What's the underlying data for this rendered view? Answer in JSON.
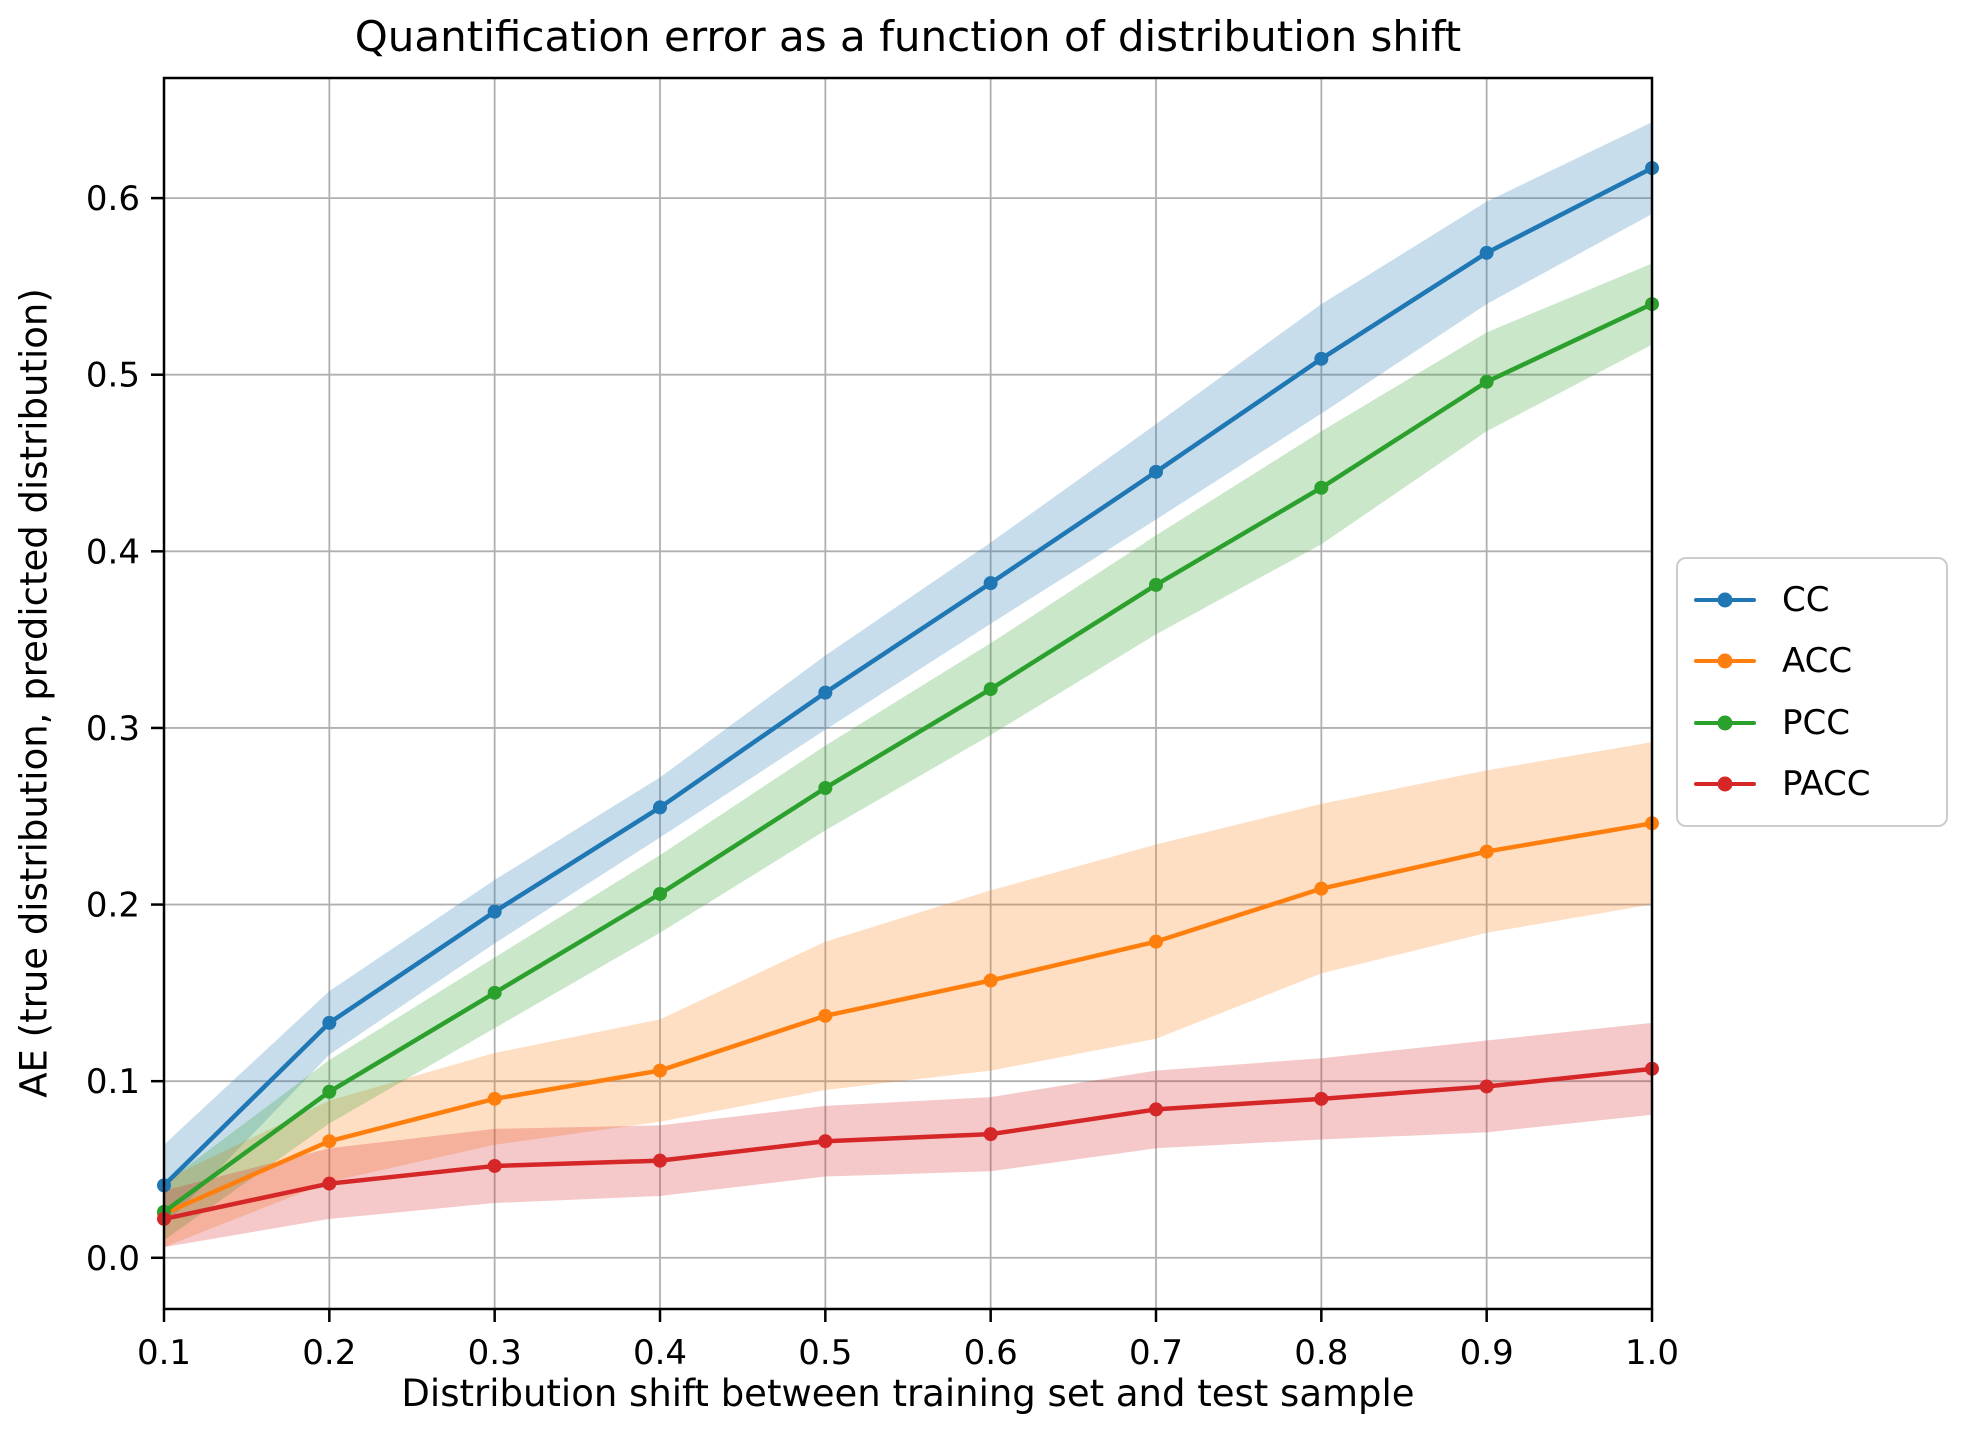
{
  "chart_data": {
    "type": "line",
    "title": "Quantification error as a function of distribution shift",
    "xlabel": "Distribution shift between training set and test sample",
    "ylabel": "AE (true distribution, predicted distribution)",
    "x": [
      0.1,
      0.2,
      0.3,
      0.4,
      0.5,
      0.6,
      0.7,
      0.8,
      0.9,
      1.0
    ],
    "x_tick_labels": [
      "0.1",
      "0.2",
      "0.3",
      "0.4",
      "0.5",
      "0.6",
      "0.7",
      "0.8",
      "0.9",
      "1.0"
    ],
    "y_ticks": [
      0.0,
      0.1,
      0.2,
      0.3,
      0.4,
      0.5,
      0.6
    ],
    "y_tick_labels": [
      "0.0",
      "0.1",
      "0.2",
      "0.3",
      "0.4",
      "0.5",
      "0.6"
    ],
    "xlim": [
      0.1,
      1.0
    ],
    "ylim": [
      -0.029,
      0.668
    ],
    "grid": true,
    "grid_color": "#b0b0b0",
    "band_alpha": 0.25,
    "legend_position": "right-outside",
    "series": [
      {
        "name": "CC",
        "color": "#1f77b4",
        "values": [
          0.041,
          0.133,
          0.196,
          0.255,
          0.32,
          0.382,
          0.445,
          0.509,
          0.569,
          0.617
        ],
        "band_halfwidth": [
          0.023,
          0.018,
          0.018,
          0.017,
          0.021,
          0.023,
          0.027,
          0.031,
          0.029,
          0.026
        ]
      },
      {
        "name": "ACC",
        "color": "#ff7f0e",
        "values": [
          0.025,
          0.066,
          0.09,
          0.106,
          0.137,
          0.157,
          0.179,
          0.209,
          0.23,
          0.246
        ],
        "band_halfwidth": [
          0.019,
          0.023,
          0.026,
          0.029,
          0.042,
          0.051,
          0.055,
          0.048,
          0.046,
          0.046
        ]
      },
      {
        "name": "PCC",
        "color": "#2ca02c",
        "values": [
          0.026,
          0.094,
          0.15,
          0.206,
          0.266,
          0.322,
          0.381,
          0.436,
          0.496,
          0.54
        ],
        "band_halfwidth": [
          0.016,
          0.018,
          0.02,
          0.022,
          0.024,
          0.026,
          0.028,
          0.032,
          0.028,
          0.023
        ]
      },
      {
        "name": "PACC",
        "color": "#d62728",
        "values": [
          0.022,
          0.042,
          0.052,
          0.055,
          0.066,
          0.07,
          0.084,
          0.09,
          0.097,
          0.107
        ],
        "band_halfwidth": [
          0.016,
          0.02,
          0.021,
          0.02,
          0.02,
          0.021,
          0.022,
          0.023,
          0.026,
          0.026
        ]
      }
    ]
  }
}
